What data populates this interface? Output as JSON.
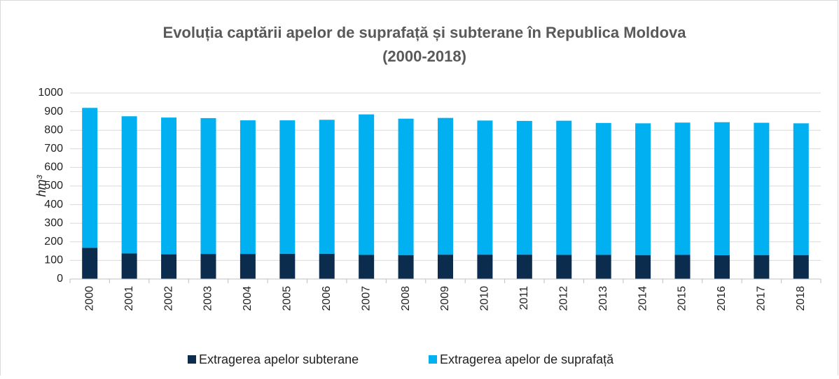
{
  "chart_data": {
    "type": "stacked_bar",
    "title": [
      "Evoluția captării apelor de suprafață și subterane în Republica Moldova",
      "(2000-2018)"
    ],
    "y_label": "hm³",
    "categories": [
      "2000",
      "2001",
      "2002",
      "2003",
      "2004",
      "2005",
      "2006",
      "2007",
      "2008",
      "2009",
      "2010",
      "2011",
      "2012",
      "2013",
      "2014",
      "2015",
      "2016",
      "2017",
      "2018"
    ],
    "series": [
      {
        "name": "Extragerea apelor subterane",
        "color": "#0b2c4d",
        "values": [
          168,
          138,
          133,
          135,
          135,
          136,
          136,
          130,
          129,
          131,
          131,
          131,
          130,
          130,
          129,
          130,
          128,
          129,
          129
        ]
      },
      {
        "name": "Extragerea apelor de suprafață",
        "color": "#00b0f0",
        "values": [
          752,
          737,
          735,
          730,
          718,
          717,
          720,
          755,
          733,
          735,
          721,
          719,
          721,
          709,
          708,
          711,
          715,
          711,
          708
        ]
      }
    ],
    "ylim": [
      0,
      1000
    ],
    "yticks": [
      0,
      100,
      200,
      300,
      400,
      500,
      600,
      700,
      800,
      900,
      1000
    ],
    "grid": true,
    "legend": "bottom"
  }
}
